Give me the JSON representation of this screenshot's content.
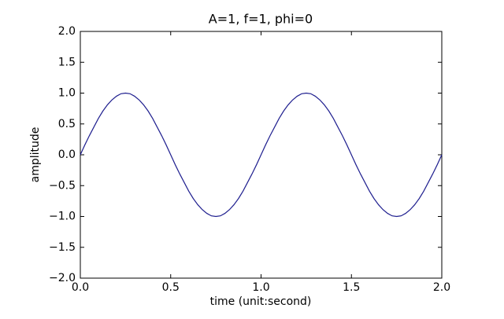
{
  "chart_data": {
    "type": "line",
    "title": "A=1, f=1, phi=0",
    "xlabel": "time (unit:second)",
    "ylabel": "amplitude",
    "x": [
      0,
      0.025,
      0.05,
      0.075,
      0.1,
      0.125,
      0.15,
      0.175,
      0.2,
      0.225,
      0.25,
      0.275,
      0.3,
      0.325,
      0.35,
      0.375,
      0.4,
      0.425,
      0.45,
      0.475,
      0.5,
      0.525,
      0.55,
      0.575,
      0.6,
      0.625,
      0.65,
      0.675,
      0.7,
      0.725,
      0.75,
      0.775,
      0.8,
      0.825,
      0.85,
      0.875,
      0.9,
      0.925,
      0.95,
      0.975,
      1,
      1.025,
      1.05,
      1.075,
      1.1,
      1.125,
      1.15,
      1.175,
      1.2,
      1.225,
      1.25,
      1.275,
      1.3,
      1.325,
      1.35,
      1.375,
      1.4,
      1.425,
      1.45,
      1.475,
      1.5,
      1.525,
      1.55,
      1.575,
      1.6,
      1.625,
      1.65,
      1.675,
      1.7,
      1.725,
      1.75,
      1.775,
      1.8,
      1.825,
      1.85,
      1.875,
      1.9,
      1.925,
      1.95,
      1.975,
      2
    ],
    "series": [
      {
        "color": "#1f1f8f",
        "values": [
          0,
          0.16,
          0.31,
          0.45,
          0.59,
          0.71,
          0.81,
          0.89,
          0.95,
          0.99,
          1,
          0.99,
          0.95,
          0.89,
          0.81,
          0.71,
          0.59,
          0.45,
          0.31,
          0.16,
          0,
          -0.16,
          -0.31,
          -0.45,
          -0.59,
          -0.71,
          -0.81,
          -0.89,
          -0.95,
          -0.99,
          -1,
          -0.99,
          -0.95,
          -0.89,
          -0.81,
          -0.71,
          -0.59,
          -0.45,
          -0.31,
          -0.16,
          0,
          0.16,
          0.31,
          0.45,
          0.59,
          0.71,
          0.81,
          0.89,
          0.95,
          0.99,
          1,
          0.99,
          0.95,
          0.89,
          0.81,
          0.71,
          0.59,
          0.45,
          0.31,
          0.16,
          0,
          -0.16,
          -0.31,
          -0.45,
          -0.59,
          -0.71,
          -0.81,
          -0.89,
          -0.95,
          -0.99,
          -1,
          -0.99,
          -0.95,
          -0.89,
          -0.81,
          -0.71,
          -0.59,
          -0.45,
          -0.31,
          -0.16,
          0
        ]
      }
    ],
    "xlim": [
      0,
      2
    ],
    "ylim": [
      -2,
      2
    ],
    "xticks": [
      {
        "value": 0,
        "label": "0.0"
      },
      0.5,
      {
        "value": 1,
        "label": "1.0"
      },
      1.5,
      {
        "value": 2,
        "label": "2.0"
      }
    ],
    "yticks": [
      {
        "value": -2,
        "label": "−2.0"
      },
      {
        "value": -1.5,
        "label": "−1.5"
      },
      {
        "value": -1,
        "label": "−1.0"
      },
      {
        "value": -0.5,
        "label": "−0.5"
      },
      {
        "value": 0,
        "label": "0.0"
      },
      0.5,
      {
        "value": 1,
        "label": "1.0"
      },
      1.5,
      {
        "value": 2,
        "label": "2.0"
      }
    ],
    "grid": false
  }
}
